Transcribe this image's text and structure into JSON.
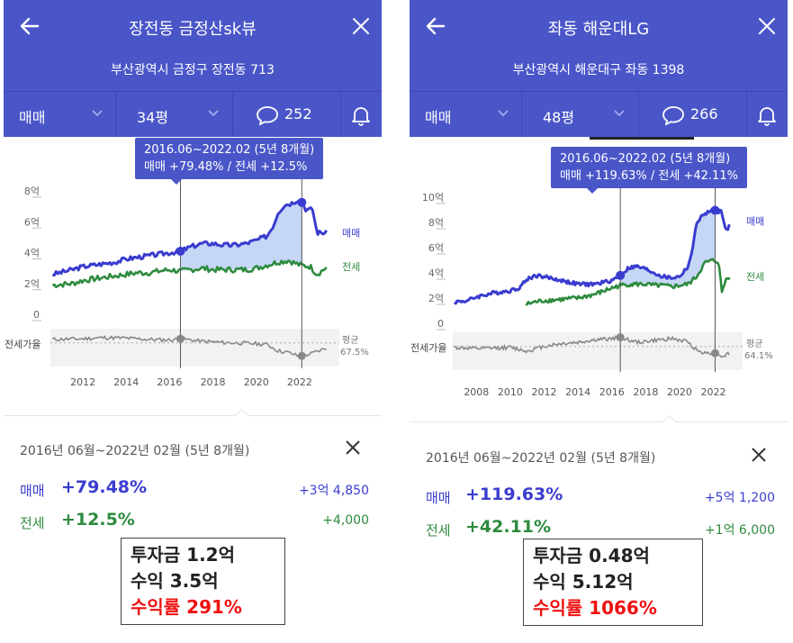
{
  "panels": [
    {
      "title": "장전동 금정산sk뷰",
      "address": "부산광역시 금정구 장전동 713",
      "trade_type": "매매",
      "size": "34평",
      "comments": "252",
      "tooltip_line1": "2016.06~2022.02 (5년 8개월)",
      "tooltip_line2": "매매 +79.48%  /  전세 +12.5%",
      "period": "2016년 06월~2022년 02월 (5년 8개월)",
      "sale_label": "매매",
      "sale_pct": "+79.48%",
      "sale_amount": "+3억 4,850",
      "jeonse_label": "전세",
      "jeonse_pct": "+12.5%",
      "jeonse_amount": "+4,000",
      "note_invest": "투자금 1.2억",
      "note_profit": "수익 3.5억",
      "note_return": "수익률 291%"
    },
    {
      "title": "좌동 해운대LG",
      "address": "부산광역시 해운대구 좌동 1398",
      "trade_type": "매매",
      "size": "48평",
      "comments": "266",
      "tooltip_line1": "2016.06~2022.02 (5년 8개월)",
      "tooltip_line2": "매매 +119.63%  /  전세 +42.11%",
      "period": "2016년 06월~2022년 02월 (5년 8개월)",
      "sale_label": "매매",
      "sale_pct": "+119.63%",
      "sale_amount": "+5억 1,200",
      "jeonse_label": "전세",
      "jeonse_pct": "+42.11%",
      "jeonse_amount": "+1억 6,000",
      "note_invest": "투자금 0.48억",
      "note_profit": "수익 5.12억",
      "note_return": "수익률 1066%"
    }
  ],
  "colors": {
    "header": "#4a56c8",
    "sale": "#3a3ccf",
    "jeonse": "#2e8b3e",
    "ratio": "#888888",
    "highlight": "#ee1111"
  },
  "icons": [
    "back-arrow-icon",
    "close-icon",
    "chevron-down-icon",
    "comment-bubble-icon",
    "bell-icon"
  ],
  "chart_data": [
    {
      "type": "line",
      "x_unit": "year",
      "y_unit": "억",
      "xlim": [
        2010.5,
        2023.5
      ],
      "ylim": [
        0,
        8
      ],
      "yticks": [
        "8억",
        "6억",
        "4억",
        "2억",
        "0"
      ],
      "xticks": [
        "2012",
        "2014",
        "2016",
        "2018",
        "2020",
        "2022"
      ],
      "sub_label": "전세가율",
      "avg_label": "평균",
      "avg_value": "67.5%",
      "highlight_range": [
        2016.5,
        2022.1
      ],
      "series": [
        {
          "name": "매매",
          "points": [
            [
              2010.6,
              3.0
            ],
            [
              2011.5,
              3.3
            ],
            [
              2012.0,
              3.5
            ],
            [
              2012.5,
              3.6
            ],
            [
              2013.0,
              3.7
            ],
            [
              2013.5,
              3.8
            ],
            [
              2014.0,
              4.0
            ],
            [
              2014.5,
              4.1
            ],
            [
              2015.0,
              4.2
            ],
            [
              2015.5,
              4.3
            ],
            [
              2016.0,
              4.4
            ],
            [
              2016.5,
              4.5
            ],
            [
              2017.0,
              4.8
            ],
            [
              2017.5,
              5.0
            ],
            [
              2018.0,
              5.0
            ],
            [
              2018.5,
              4.9
            ],
            [
              2019.0,
              4.9
            ],
            [
              2019.5,
              5.0
            ],
            [
              2020.0,
              5.2
            ],
            [
              2020.5,
              5.5
            ],
            [
              2020.8,
              6.2
            ],
            [
              2021.0,
              7.0
            ],
            [
              2021.3,
              7.5
            ],
            [
              2021.6,
              7.6
            ],
            [
              2022.0,
              7.9
            ],
            [
              2022.3,
              7.2
            ],
            [
              2022.6,
              7.2
            ],
            [
              2022.8,
              5.7
            ],
            [
              2023.3,
              5.7
            ]
          ]
        },
        {
          "name": "전세",
          "points": [
            [
              2010.6,
              2.3
            ],
            [
              2011.5,
              2.4
            ],
            [
              2012.0,
              2.6
            ],
            [
              2012.5,
              2.7
            ],
            [
              2013.0,
              2.8
            ],
            [
              2013.5,
              2.9
            ],
            [
              2014.0,
              3.0
            ],
            [
              2014.5,
              3.1
            ],
            [
              2015.0,
              3.1
            ],
            [
              2015.5,
              3.2
            ],
            [
              2016.0,
              3.3
            ],
            [
              2016.5,
              3.2
            ],
            [
              2017.0,
              3.3
            ],
            [
              2017.5,
              3.4
            ],
            [
              2018.0,
              3.3
            ],
            [
              2018.5,
              3.3
            ],
            [
              2019.0,
              3.3
            ],
            [
              2019.5,
              3.3
            ],
            [
              2020.0,
              3.4
            ],
            [
              2020.5,
              3.6
            ],
            [
              2021.0,
              3.8
            ],
            [
              2021.5,
              3.9
            ],
            [
              2022.0,
              3.6
            ],
            [
              2022.5,
              3.5
            ],
            [
              2022.8,
              3.0
            ],
            [
              2023.3,
              3.5
            ]
          ]
        },
        {
          "name": "전세가율",
          "points": [
            [
              2010.6,
              0.73
            ],
            [
              2012.0,
              0.74
            ],
            [
              2013.0,
              0.76
            ],
            [
              2014.0,
              0.75
            ],
            [
              2015.0,
              0.73
            ],
            [
              2016.0,
              0.72
            ],
            [
              2016.5,
              0.74
            ],
            [
              2017.5,
              0.7
            ],
            [
              2018.5,
              0.68
            ],
            [
              2019.5,
              0.67
            ],
            [
              2020.5,
              0.65
            ],
            [
              2021.0,
              0.55
            ],
            [
              2021.5,
              0.52
            ],
            [
              2022.0,
              0.46
            ],
            [
              2022.5,
              0.5
            ],
            [
              2023.3,
              0.6
            ]
          ]
        }
      ]
    },
    {
      "type": "line",
      "x_unit": "year",
      "y_unit": "억",
      "xlim": [
        2006.6,
        2023.3
      ],
      "ylim": [
        0,
        10
      ],
      "yticks": [
        "10억",
        "8억",
        "6억",
        "4억",
        "2억",
        "0"
      ],
      "xticks": [
        "2008",
        "2010",
        "2012",
        "2014",
        "2016",
        "2018",
        "2020",
        "2022"
      ],
      "sub_label": "전세가율",
      "avg_label": "평균",
      "avg_value": "64.1%",
      "highlight_range": [
        2016.5,
        2022.1
      ],
      "series": [
        {
          "name": "매매",
          "points": [
            [
              2006.7,
              2.2
            ],
            [
              2007.5,
              2.3
            ],
            [
              2008.0,
              2.6
            ],
            [
              2009.0,
              2.9
            ],
            [
              2010.0,
              3.1
            ],
            [
              2010.5,
              3.3
            ],
            [
              2011.0,
              4.0
            ],
            [
              2011.5,
              4.3
            ],
            [
              2012.0,
              4.2
            ],
            [
              2013.0,
              3.9
            ],
            [
              2014.0,
              3.6
            ],
            [
              2015.0,
              3.6
            ],
            [
              2016.0,
              3.9
            ],
            [
              2016.5,
              4.3
            ],
            [
              2017.0,
              4.9
            ],
            [
              2017.5,
              5.0
            ],
            [
              2018.0,
              4.8
            ],
            [
              2018.5,
              4.5
            ],
            [
              2019.0,
              4.2
            ],
            [
              2019.5,
              4.1
            ],
            [
              2020.0,
              4.2
            ],
            [
              2020.5,
              5.0
            ],
            [
              2020.8,
              6.5
            ],
            [
              2021.0,
              8.5
            ],
            [
              2021.5,
              9.2
            ],
            [
              2022.0,
              9.5
            ],
            [
              2022.5,
              9.3
            ],
            [
              2022.8,
              7.7
            ],
            [
              2023.0,
              8.6
            ]
          ]
        },
        {
          "name": "전세",
          "points": [
            [
              2010.9,
              2.0
            ],
            [
              2011.5,
              2.2
            ],
            [
              2012.0,
              2.3
            ],
            [
              2013.0,
              2.4
            ],
            [
              2014.0,
              2.5
            ],
            [
              2015.0,
              2.8
            ],
            [
              2016.0,
              3.3
            ],
            [
              2016.5,
              3.5
            ],
            [
              2017.0,
              3.6
            ],
            [
              2017.5,
              3.6
            ],
            [
              2018.0,
              3.6
            ],
            [
              2018.5,
              3.5
            ],
            [
              2019.0,
              3.5
            ],
            [
              2019.5,
              3.4
            ],
            [
              2020.0,
              3.5
            ],
            [
              2020.5,
              3.6
            ],
            [
              2021.0,
              4.2
            ],
            [
              2021.5,
              5.3
            ],
            [
              2022.0,
              5.5
            ],
            [
              2022.3,
              5.4
            ],
            [
              2022.5,
              3.0
            ],
            [
              2022.8,
              4.2
            ],
            [
              2023.0,
              4.2
            ]
          ]
        },
        {
          "name": "전세가율",
          "points": [
            [
              2006.7,
              0.66
            ],
            [
              2008.0,
              0.64
            ],
            [
              2010.0,
              0.66
            ],
            [
              2011.0,
              0.6
            ],
            [
              2012.0,
              0.68
            ],
            [
              2013.0,
              0.72
            ],
            [
              2014.0,
              0.74
            ],
            [
              2015.0,
              0.78
            ],
            [
              2016.0,
              0.8
            ],
            [
              2016.5,
              0.82
            ],
            [
              2017.5,
              0.74
            ],
            [
              2018.5,
              0.77
            ],
            [
              2019.5,
              0.8
            ],
            [
              2020.5,
              0.75
            ],
            [
              2021.0,
              0.62
            ],
            [
              2021.5,
              0.57
            ],
            [
              2022.0,
              0.58
            ],
            [
              2022.5,
              0.52
            ],
            [
              2023.0,
              0.57
            ]
          ]
        }
      ]
    }
  ]
}
